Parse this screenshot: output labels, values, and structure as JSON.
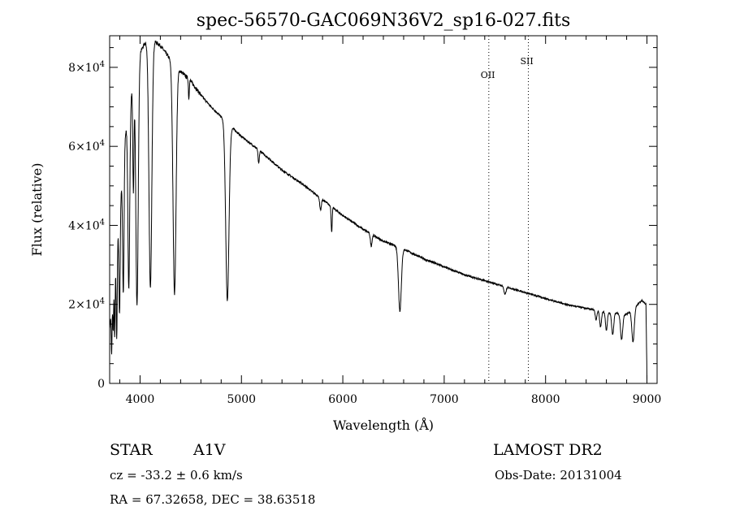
{
  "chart_data": {
    "type": "line",
    "title": "spec-56570-GAC069N36V2_sp16-027.fits",
    "xlabel": "Wavelength (Å)",
    "ylabel": "Flux (relative)",
    "xlim": [
      3700,
      9100
    ],
    "ylim": [
      0,
      88000
    ],
    "x_ticks": [
      4000,
      5000,
      6000,
      7000,
      8000,
      9000
    ],
    "x_tick_labels": [
      "4000",
      "5000",
      "6000",
      "7000",
      "8000",
      "9000"
    ],
    "y_ticks": [
      0,
      20000,
      40000,
      60000,
      80000
    ],
    "y_tick_labels": [
      {
        "mantissa": "0",
        "exp": ""
      },
      {
        "mantissa": "2×10",
        "exp": "4"
      },
      {
        "mantissa": "4×10",
        "exp": "4"
      },
      {
        "mantissa": "6×10",
        "exp": "4"
      },
      {
        "mantissa": "8×10",
        "exp": "4"
      }
    ],
    "continuum": {
      "x": [
        3700,
        3760,
        3850,
        3950,
        4000,
        4050,
        4100,
        4150,
        4200,
        4300,
        4400,
        4500,
        4600,
        4700,
        4800,
        4900,
        5000,
        5200,
        5400,
        5600,
        5800,
        6000,
        6200,
        6400,
        6600,
        6800,
        7000,
        7200,
        7400,
        7600,
        7800,
        8000,
        8200,
        8400,
        8600,
        8800,
        8950,
        8990,
        9000
      ],
      "y": [
        14000,
        30000,
        62000,
        80000,
        84000,
        86000,
        87000,
        86500,
        85500,
        82000,
        79000,
        76500,
        73000,
        70000,
        67500,
        65000,
        62500,
        58500,
        54000,
        50500,
        46500,
        42500,
        39000,
        36000,
        34000,
        31500,
        29500,
        27500,
        26000,
        24500,
        23000,
        21500,
        20000,
        19000,
        18000,
        17500,
        21000,
        20000,
        2000
      ]
    },
    "absorption_lines": [
      {
        "x": 3720,
        "depth": 12000,
        "width": 4
      },
      {
        "x": 3735,
        "depth": 10000,
        "width": 4
      },
      {
        "x": 3750,
        "depth": 16000,
        "width": 4
      },
      {
        "x": 3770,
        "depth": 22000,
        "width": 5
      },
      {
        "x": 3798,
        "depth": 26000,
        "width": 6
      },
      {
        "x": 3835,
        "depth": 34000,
        "width": 7
      },
      {
        "x": 3889,
        "depth": 45000,
        "width": 9
      },
      {
        "x": 3934,
        "depth": 28000,
        "width": 6
      },
      {
        "x": 3970,
        "depth": 62000,
        "width": 12
      },
      {
        "x": 4102,
        "depth": 63000,
        "width": 14
      },
      {
        "x": 4340,
        "depth": 58000,
        "width": 15
      },
      {
        "x": 4481,
        "depth": 5000,
        "width": 4
      },
      {
        "x": 4861,
        "depth": 45000,
        "width": 16
      },
      {
        "x": 5170,
        "depth": 3500,
        "width": 6
      },
      {
        "x": 5780,
        "depth": 3000,
        "width": 8
      },
      {
        "x": 5890,
        "depth": 6500,
        "width": 5
      },
      {
        "x": 6280,
        "depth": 3000,
        "width": 8
      },
      {
        "x": 6563,
        "depth": 16000,
        "width": 14
      },
      {
        "x": 7600,
        "depth": 2000,
        "width": 10
      },
      {
        "x": 8498,
        "depth": 2500,
        "width": 8
      },
      {
        "x": 8542,
        "depth": 4000,
        "width": 9
      },
      {
        "x": 8600,
        "depth": 4500,
        "width": 9
      },
      {
        "x": 8662,
        "depth": 5500,
        "width": 10
      },
      {
        "x": 8750,
        "depth": 6500,
        "width": 11
      },
      {
        "x": 8863,
        "depth": 8500,
        "width": 12
      }
    ],
    "line_markers": [
      {
        "label": "OII",
        "x": 7440
      },
      {
        "label": "SII",
        "x": 7830
      }
    ]
  },
  "info": {
    "object_type": "STAR",
    "subclass": "A1V",
    "survey": "LAMOST DR2",
    "redshift": "cz = -33.2 ± 0.6 km/s",
    "obs_date": "Obs-Date: 20131004",
    "coords": "RA =  67.32658, DEC =  38.63518"
  }
}
